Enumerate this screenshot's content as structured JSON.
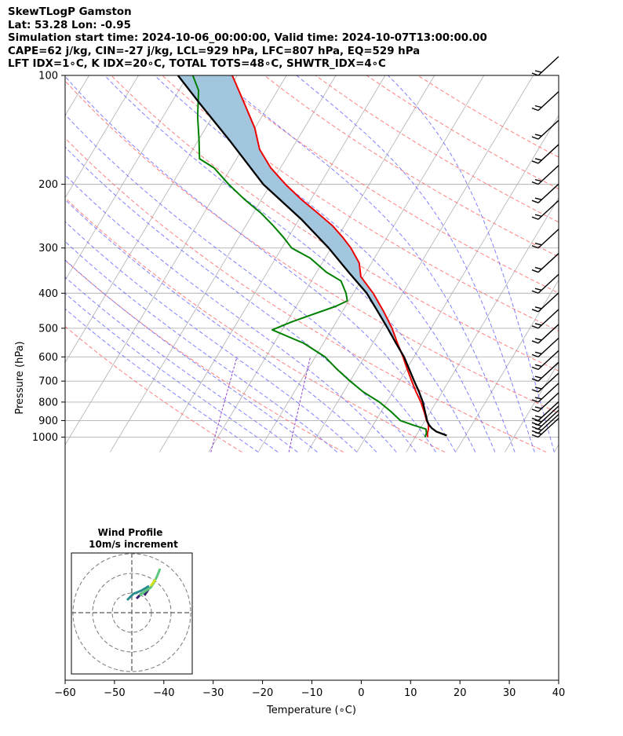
{
  "header": {
    "line1": "SkewTLogP Gamston",
    "line2": "Lat: 53.28   Lon: -0.95",
    "line3": "Simulation start time: 2024-10-06_00:00:00, Valid time: 2024-10-07T13:00:00.00",
    "line4": "CAPE=62 j/kg, CIN=-27 j/kg, LCL=929 hPa, LFC=807 hPa, EQ=529 hPa",
    "line5": "LFT IDX=1∘C, K IDX=20∘C, TOTAL TOTS=48∘C, SHWTR_IDX=4∘C"
  },
  "chart_data": {
    "type": "line",
    "xlabel": "Temperature (∘C)",
    "ylabel": "Pressure (hPa)",
    "xlim": [
      -60,
      40
    ],
    "ylim_hpa": [
      1050,
      100
    ],
    "y_scale": "log",
    "skew": "skew-T log-P",
    "grid": true,
    "x_ticks": [
      -60,
      -50,
      -40,
      -30,
      -20,
      -10,
      0,
      10,
      20,
      30,
      40
    ],
    "y_ticks": [
      100,
      200,
      300,
      400,
      500,
      600,
      700,
      800,
      900,
      1000
    ],
    "colors": {
      "temperature": "#ee0000",
      "dewpoint": "#008000",
      "parcel": "#000000",
      "cape_fill": "#a3c6df",
      "dry_adiabats": "#ff6b6b",
      "moist_adiabats": "#6b6bff",
      "mixing_ratio": "#8b3fc8",
      "isotherms": "#b0b0b0"
    },
    "series": [
      {
        "key": "temperature",
        "points": [
          [
            1000,
            12.5
          ],
          [
            975,
            12.0
          ],
          [
            950,
            11.7
          ],
          [
            925,
            11.2
          ],
          [
            900,
            10.3
          ],
          [
            850,
            8.7
          ],
          [
            800,
            6.9
          ],
          [
            750,
            4.7
          ],
          [
            700,
            2.5
          ],
          [
            650,
            0.2
          ],
          [
            600,
            -2.2
          ],
          [
            550,
            -5.0
          ],
          [
            500,
            -7.9
          ],
          [
            450,
            -11.6
          ],
          [
            400,
            -16.0
          ],
          [
            360,
            -20.5
          ],
          [
            330,
            -22.5
          ],
          [
            300,
            -26.0
          ],
          [
            280,
            -29.0
          ],
          [
            260,
            -32.5
          ],
          [
            240,
            -37.0
          ],
          [
            220,
            -42.0
          ],
          [
            200,
            -47.0
          ],
          [
            180,
            -52.0
          ],
          [
            160,
            -56.5
          ],
          [
            140,
            -60.0
          ],
          [
            120,
            -65.0
          ],
          [
            100,
            -71.0
          ]
        ]
      },
      {
        "key": "dewpoint",
        "points": [
          [
            1000,
            12.0
          ],
          [
            975,
            11.8
          ],
          [
            950,
            11.2
          ],
          [
            925,
            8.0
          ],
          [
            900,
            5.0
          ],
          [
            850,
            2.0
          ],
          [
            800,
            -1.5
          ],
          [
            750,
            -6.0
          ],
          [
            700,
            -10.0
          ],
          [
            650,
            -14.0
          ],
          [
            600,
            -18.0
          ],
          [
            550,
            -24.0
          ],
          [
            505,
            -32.0
          ],
          [
            480,
            -29.0
          ],
          [
            435,
            -22.0
          ],
          [
            420,
            -20.3
          ],
          [
            400,
            -21.5
          ],
          [
            370,
            -24.0
          ],
          [
            350,
            -28.0
          ],
          [
            320,
            -33.0
          ],
          [
            300,
            -38.0
          ],
          [
            280,
            -41.0
          ],
          [
            260,
            -44.5
          ],
          [
            240,
            -48.5
          ],
          [
            220,
            -53.5
          ],
          [
            200,
            -58.5
          ],
          [
            180,
            -63.5
          ],
          [
            170,
            -67.5
          ],
          [
            150,
            -70.0
          ],
          [
            130,
            -73.0
          ],
          [
            110,
            -76.0
          ],
          [
            100,
            -79.0
          ]
        ]
      },
      {
        "key": "parcel",
        "points": [
          [
            990,
            16.2
          ],
          [
            965,
            13.6
          ],
          [
            945,
            12.3
          ],
          [
            925,
            11.3
          ],
          [
            900,
            10.4
          ],
          [
            850,
            8.9
          ],
          [
            800,
            7.3
          ],
          [
            750,
            5.3
          ],
          [
            700,
            3.0
          ],
          [
            650,
            0.6
          ],
          [
            600,
            -2.0
          ],
          [
            550,
            -5.3
          ],
          [
            500,
            -8.8
          ],
          [
            450,
            -12.8
          ],
          [
            400,
            -17.3
          ],
          [
            350,
            -23.5
          ],
          [
            300,
            -30.5
          ],
          [
            250,
            -39.5
          ],
          [
            200,
            -51.5
          ],
          [
            150,
            -64.0
          ],
          [
            120,
            -74.0
          ],
          [
            100,
            -82.0
          ]
        ]
      }
    ],
    "wind_barbs": [
      {
        "p": 1000
      },
      {
        "p": 975
      },
      {
        "p": 950
      },
      {
        "p": 925
      },
      {
        "p": 900
      },
      {
        "p": 850
      },
      {
        "p": 800
      },
      {
        "p": 750
      },
      {
        "p": 700
      },
      {
        "p": 650
      },
      {
        "p": 600
      },
      {
        "p": 550
      },
      {
        "p": 500
      },
      {
        "p": 450
      },
      {
        "p": 400
      },
      {
        "p": 350
      },
      {
        "p": 300
      },
      {
        "p": 250
      },
      {
        "p": 225
      },
      {
        "p": 200
      },
      {
        "p": 175
      },
      {
        "p": 150
      },
      {
        "p": 125
      },
      {
        "p": 100
      }
    ],
    "inset": {
      "title_line1": "Wind Profile",
      "title_line2": "10m/s increment",
      "rings": 3
    }
  }
}
